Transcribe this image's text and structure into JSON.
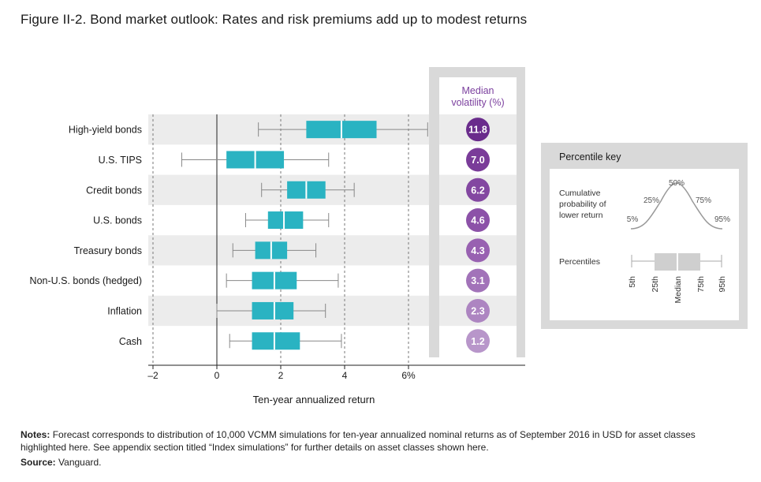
{
  "title": "Figure II-2. Bond market outlook: Rates and risk premiums add up to modest returns",
  "chart_data": {
    "type": "boxplot",
    "xlabel": "Ten-year annualized return",
    "xlim": [
      -2,
      7
    ],
    "xticks": [
      {
        "value": -2,
        "label": "–2"
      },
      {
        "value": 0,
        "label": "0"
      },
      {
        "value": 2,
        "label": "2"
      },
      {
        "value": 4,
        "label": "4"
      },
      {
        "value": 6,
        "label": "6%"
      }
    ],
    "categories": [
      "High-yield bonds",
      "U.S. TIPS",
      "Credit bonds",
      "U.S. bonds",
      "Treasury bonds",
      "Non-U.S. bonds (hedged)",
      "Inflation",
      "Cash"
    ],
    "series": [
      {
        "p5": 1.3,
        "p25": 2.8,
        "median": 3.9,
        "p75": 5.0,
        "p95": 6.6
      },
      {
        "p5": -1.1,
        "p25": 0.3,
        "median": 1.2,
        "p75": 2.1,
        "p95": 3.5
      },
      {
        "p5": 1.4,
        "p25": 2.2,
        "median": 2.8,
        "p75": 3.4,
        "p95": 4.3
      },
      {
        "p5": 0.9,
        "p25": 1.6,
        "median": 2.1,
        "p75": 2.7,
        "p95": 3.5
      },
      {
        "p5": 0.5,
        "p25": 1.2,
        "median": 1.7,
        "p75": 2.2,
        "p95": 3.1
      },
      {
        "p5": 0.3,
        "p25": 1.1,
        "median": 1.8,
        "p75": 2.5,
        "p95": 3.8
      },
      {
        "p5": 0.0,
        "p25": 1.1,
        "median": 1.8,
        "p75": 2.4,
        "p95": 3.4
      },
      {
        "p5": 0.4,
        "p25": 1.1,
        "median": 1.8,
        "p75": 2.6,
        "p95": 3.9
      }
    ],
    "volatility_header": "Median volatility (%)",
    "volatility": [
      "11.8",
      "7.0",
      "6.2",
      "4.6",
      "4.3",
      "3.1",
      "2.3",
      "1.2"
    ],
    "volatility_colors": [
      "#6a2c8c",
      "#7a3c99",
      "#8347a1",
      "#8c52a8",
      "#9861b1",
      "#a273b9",
      "#ad85c1",
      "#b896ca"
    ],
    "box_color": "#2ab3c2",
    "band_color": "#ececec",
    "grid": "dashed vertical"
  },
  "percentile_key": {
    "title": "Percentile key",
    "curve_label": "Cumulative probability of lower return",
    "row_label": "Percentiles",
    "curve_points": [
      "5%",
      "25%",
      "50%",
      "75%",
      "95%"
    ],
    "ticks": [
      "5th",
      "25th",
      "Median",
      "75th",
      "95th"
    ]
  },
  "notes_label": "Notes:",
  "notes_text": "Forecast corresponds to distribution of 10,000 VCMM simulations for ten-year annualized nominal returns as of September 2016 in USD for asset classes highlighted here. See appendix section titled “Index simulations” for further details on asset classes shown here.",
  "source_label": "Source:",
  "source_text": "Vanguard."
}
